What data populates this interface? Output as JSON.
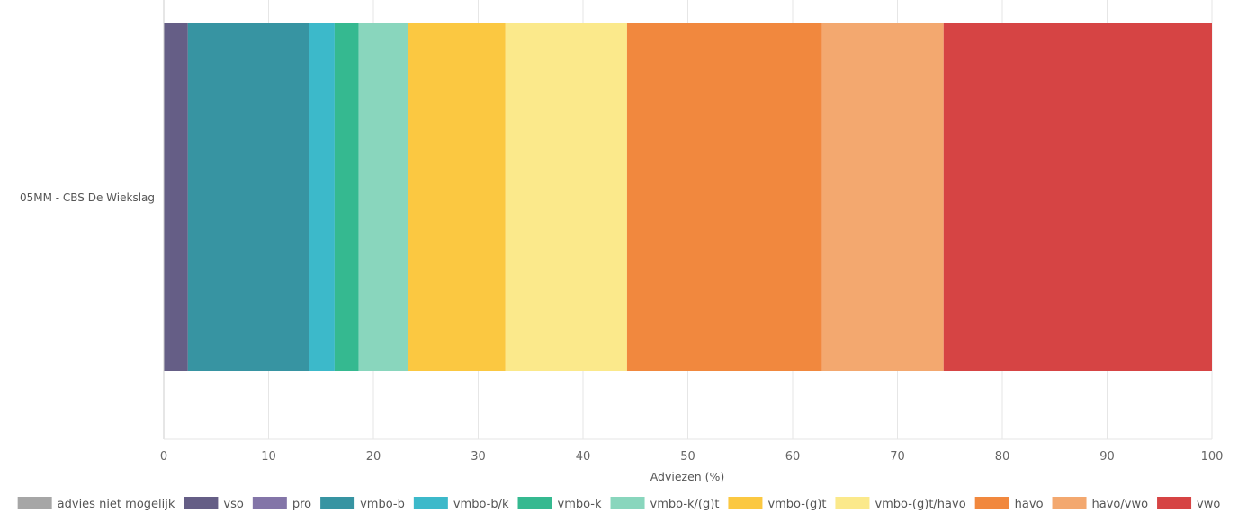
{
  "chart_data": {
    "type": "bar",
    "orientation": "horizontal",
    "stacked": true,
    "categories": [
      "05MM - CBS De Wiekslag"
    ],
    "xlabel": "Adviezen (%)",
    "xlim": [
      0,
      100
    ],
    "xticks": [
      0,
      10,
      20,
      30,
      40,
      50,
      60,
      70,
      80,
      90,
      100
    ],
    "grid": true,
    "legend_position": "bottom",
    "series": [
      {
        "name": "advies niet mogelijk",
        "color": "#a6a6a6",
        "values": [
          0
        ]
      },
      {
        "name": "vso",
        "color": "#655e86",
        "values": [
          2.3
        ]
      },
      {
        "name": "pro",
        "color": "#8375a8",
        "values": [
          0
        ]
      },
      {
        "name": "vmbo-b",
        "color": "#3794a2",
        "values": [
          11.6
        ]
      },
      {
        "name": "vmbo-b/k",
        "color": "#3cb9ca",
        "values": [
          2.4
        ]
      },
      {
        "name": "vmbo-k",
        "color": "#35b990",
        "values": [
          2.3
        ]
      },
      {
        "name": "vmbo-k/(g)t",
        "color": "#89d6bd",
        "values": [
          4.7
        ]
      },
      {
        "name": "vmbo-(g)t",
        "color": "#fbc841",
        "values": [
          9.3
        ]
      },
      {
        "name": "vmbo-(g)t/havo",
        "color": "#fbe98b",
        "values": [
          11.6
        ]
      },
      {
        "name": "havo",
        "color": "#f1883e",
        "values": [
          18.6
        ]
      },
      {
        "name": "havo/vwo",
        "color": "#f3a86f",
        "values": [
          11.6
        ]
      },
      {
        "name": "vwo",
        "color": "#d64444",
        "values": [
          25.6
        ]
      }
    ]
  }
}
